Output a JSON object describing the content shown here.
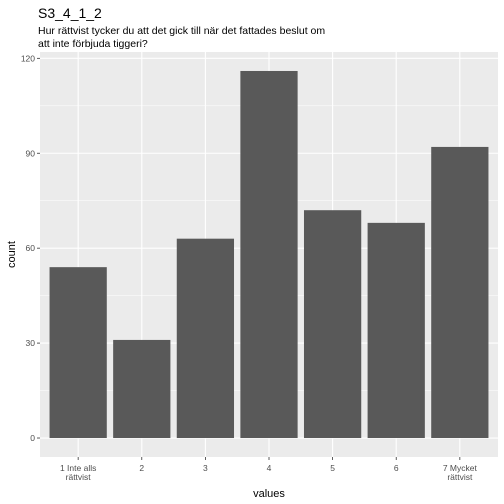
{
  "chart_data": {
    "type": "bar",
    "title": "S3_4_1_2",
    "subtitle_lines": [
      "Hur rättvist tycker du att det gick till när det fattades beslut om",
      "att inte förbjuda tiggeri?"
    ],
    "xlabel": "values",
    "ylabel": "count",
    "categories": [
      [
        "1 Inte alls",
        "rättvist"
      ],
      [
        "2"
      ],
      [
        "3"
      ],
      [
        "4"
      ],
      [
        "5"
      ],
      [
        "6"
      ],
      [
        "7 Mycket",
        "rättvist"
      ]
    ],
    "values": [
      54,
      31,
      63,
      116,
      72,
      68,
      92
    ],
    "ylim": [
      -6,
      122
    ],
    "yticks": [
      0,
      30,
      60,
      90,
      120
    ],
    "grid": true,
    "bar_color": "#595959",
    "panel_color": "#ebebeb",
    "grid_color": "#ffffff"
  }
}
